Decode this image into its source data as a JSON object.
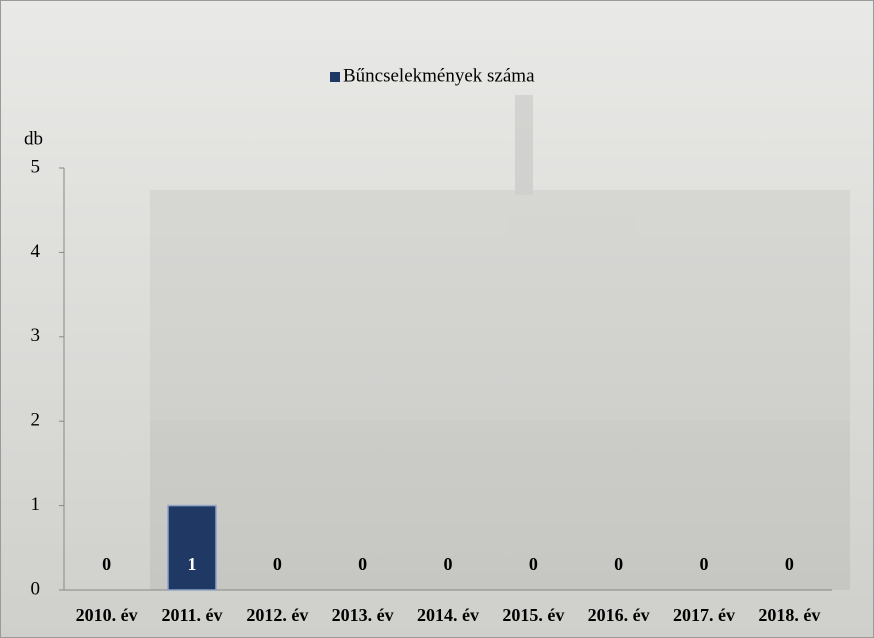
{
  "chart_data": {
    "type": "bar",
    "y_label": "db",
    "categories": [
      "2010. év",
      "2011. év",
      "2012. év",
      "2013. év",
      "2014. év",
      "2015. év",
      "2016. év",
      "2017. év",
      "2018. év"
    ],
    "series": [
      {
        "name": "Bűncselekmények száma",
        "color": "#1f3864",
        "values": [
          0,
          1,
          0,
          0,
          0,
          0,
          0,
          0,
          0
        ]
      }
    ],
    "ylim": [
      0,
      5
    ],
    "yticks": [
      0,
      1,
      2,
      3,
      4,
      5
    ],
    "legend": "top"
  }
}
